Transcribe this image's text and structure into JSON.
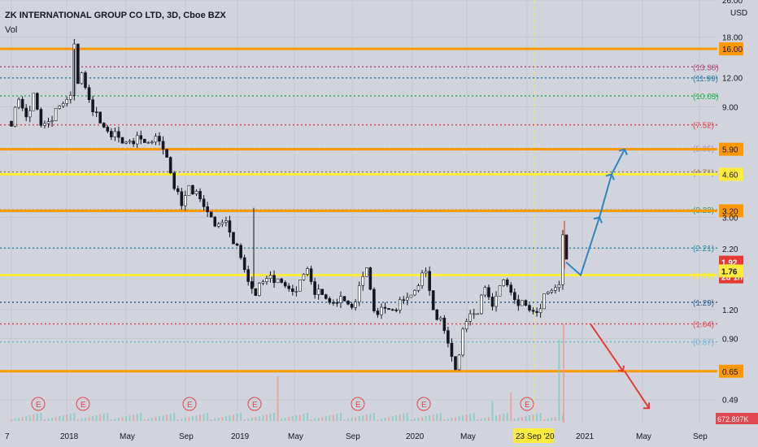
{
  "header": {
    "symbol_title": "ZK INTERNATIONAL GROUP CO LTD, 3D, Cboe BZX",
    "volume_label": "Vol"
  },
  "chart_data": {
    "type": "candlestick",
    "title": "ZK INTERNATIONAL GROUP CO LTD, 3D, Cboe BZX",
    "currency": "USD",
    "y_scale": "log",
    "ylim": [
      0.39,
      26.0
    ],
    "y_ticks": [
      {
        "label": "26.00",
        "value": 26.0
      },
      {
        "label": "18.00",
        "value": 18.0
      },
      {
        "label": "12.00",
        "value": 12.0
      },
      {
        "label": "9.00",
        "value": 9.0
      },
      {
        "label": "3.00",
        "value": 3.0
      },
      {
        "label": "2.20",
        "value": 2.2
      },
      {
        "label": "1.20",
        "value": 1.2
      },
      {
        "label": "0.90",
        "value": 0.9
      },
      {
        "label": "0.49",
        "value": 0.49
      }
    ],
    "x_ticks": [
      "7",
      "2018",
      "May",
      "Sep",
      "2019",
      "May",
      "Sep",
      "2020",
      "May",
      "Sep",
      "2021",
      "May",
      "Sep"
    ],
    "horizontal_levels": [
      {
        "value": 16.0,
        "label": "16.00",
        "style": "solid",
        "color": "#ff9800",
        "badge": true
      },
      {
        "value": 13.38,
        "label": "(13.38)",
        "style": "dotted",
        "color": "#b24b7b"
      },
      {
        "value": 11.99,
        "label": "(11.99)",
        "style": "dotted",
        "color": "#2d7fa8"
      },
      {
        "value": 10.03,
        "label": "(10.03)",
        "style": "dotted",
        "color": "#22b24c"
      },
      {
        "value": 7.52,
        "label": "(7.52)",
        "style": "dotted",
        "color": "#e0464f"
      },
      {
        "value": 5.95,
        "label": "(5.95)",
        "style": "dotted",
        "color": "#a889c8"
      },
      {
        "value": 5.9,
        "label": "5.90",
        "style": "solid",
        "color": "#ff9800",
        "badge": true
      },
      {
        "value": 4.71,
        "label": "(4.71)",
        "style": "dotted",
        "color": "#a67c2c"
      },
      {
        "value": 4.6,
        "label": "4.60",
        "style": "solid",
        "color": "#ffeb3b",
        "badge": true
      },
      {
        "value": 3.23,
        "label": "(3.23)",
        "style": "dotted",
        "color": "#3d8f5f"
      },
      {
        "value": 3.2,
        "label": "3.20",
        "style": "solid",
        "color": "#ff9800",
        "badge": true
      },
      {
        "value": 2.21,
        "label": "(2.21)",
        "style": "dotted",
        "color": "#2d8fa8"
      },
      {
        "value": 1.69,
        "label": "(1.69)",
        "style": "solid",
        "color": "#ffeb3b"
      },
      {
        "value": 1.29,
        "label": "(1.29)",
        "style": "dotted",
        "color": "#2d5f8f"
      },
      {
        "value": 1.04,
        "label": "(1.04)",
        "style": "dotted",
        "color": "#e0464f"
      },
      {
        "value": 0.87,
        "label": "(0.87)",
        "style": "dotted",
        "color": "#6ab7d0"
      },
      {
        "value": 0.65,
        "label": "0.65",
        "style": "solid",
        "color": "#ff9800",
        "badge": true
      }
    ],
    "price_badges": [
      {
        "label": "1.92",
        "value": 1.92,
        "color": "#e53935"
      },
      {
        "label": "2d 1h",
        "value": 1.66,
        "color": "#e53935"
      },
      {
        "label": "1.76",
        "value": 1.76,
        "color": "#ffeb3b"
      }
    ],
    "volume_badge": "672.897K",
    "current_date_label": "23 Sep '20",
    "earnings_marker_label": "E",
    "earnings_marker_count": 9,
    "projection_up": [
      1.92,
      1.69,
      3.0,
      4.6,
      5.9
    ],
    "projection_down": [
      1.04,
      0.65,
      0.45
    ],
    "price_path": [
      [
        0,
        7.8
      ],
      [
        2,
        9.5
      ],
      [
        4,
        8.3
      ],
      [
        6,
        9.8
      ],
      [
        8,
        7.4
      ],
      [
        10,
        8.0
      ],
      [
        12,
        8.5
      ],
      [
        14,
        9.3
      ],
      [
        16,
        10.5
      ],
      [
        17,
        16.0
      ],
      [
        18,
        11.0
      ],
      [
        19,
        12.5
      ],
      [
        20,
        11.0
      ],
      [
        22,
        9.0
      ],
      [
        24,
        7.5
      ],
      [
        26,
        7.2
      ],
      [
        28,
        6.7
      ],
      [
        30,
        6.2
      ],
      [
        32,
        6.6
      ],
      [
        34,
        6.5
      ],
      [
        36,
        6.3
      ],
      [
        38,
        6.6
      ],
      [
        40,
        6.2
      ],
      [
        42,
        5.5
      ],
      [
        44,
        4.2
      ],
      [
        46,
        3.3
      ],
      [
        48,
        4.2
      ],
      [
        50,
        3.7
      ],
      [
        52,
        3.3
      ],
      [
        54,
        3.1
      ],
      [
        56,
        2.7
      ],
      [
        58,
        2.9
      ],
      [
        60,
        2.4
      ],
      [
        62,
        1.95
      ],
      [
        64,
        1.6
      ],
      [
        66,
        1.45
      ],
      [
        68,
        1.55
      ],
      [
        70,
        1.72
      ],
      [
        72,
        1.55
      ],
      [
        74,
        1.5
      ],
      [
        76,
        1.48
      ],
      [
        78,
        1.55
      ],
      [
        80,
        1.8
      ],
      [
        82,
        1.45
      ],
      [
        84,
        1.35
      ],
      [
        86,
        1.3
      ],
      [
        88,
        1.35
      ],
      [
        90,
        1.28
      ],
      [
        92,
        1.25
      ],
      [
        94,
        1.45
      ],
      [
        96,
        1.8
      ],
      [
        98,
        1.22
      ],
      [
        100,
        1.18
      ],
      [
        102,
        1.2
      ],
      [
        104,
        1.24
      ],
      [
        106,
        1.28
      ],
      [
        108,
        1.4
      ],
      [
        110,
        1.6
      ],
      [
        112,
        1.72
      ],
      [
        114,
        1.22
      ],
      [
        116,
        1.05
      ],
      [
        118,
        0.85
      ],
      [
        120,
        0.68
      ],
      [
        122,
        0.95
      ],
      [
        124,
        1.15
      ],
      [
        126,
        1.2
      ],
      [
        128,
        1.45
      ],
      [
        130,
        1.25
      ],
      [
        132,
        1.6
      ],
      [
        134,
        1.5
      ],
      [
        136,
        1.35
      ],
      [
        138,
        1.25
      ],
      [
        140,
        1.18
      ],
      [
        142,
        1.2
      ],
      [
        144,
        1.35
      ],
      [
        146,
        1.45
      ],
      [
        148,
        1.6
      ],
      [
        149,
        2.4
      ],
      [
        150,
        1.92
      ]
    ],
    "volume_spikes": [
      {
        "at": 72,
        "rel": 0.55
      },
      {
        "at": 130,
        "rel": 0.25
      },
      {
        "at": 135,
        "rel": 0.35
      },
      {
        "at": 148,
        "rel": 1.0
      }
    ]
  }
}
